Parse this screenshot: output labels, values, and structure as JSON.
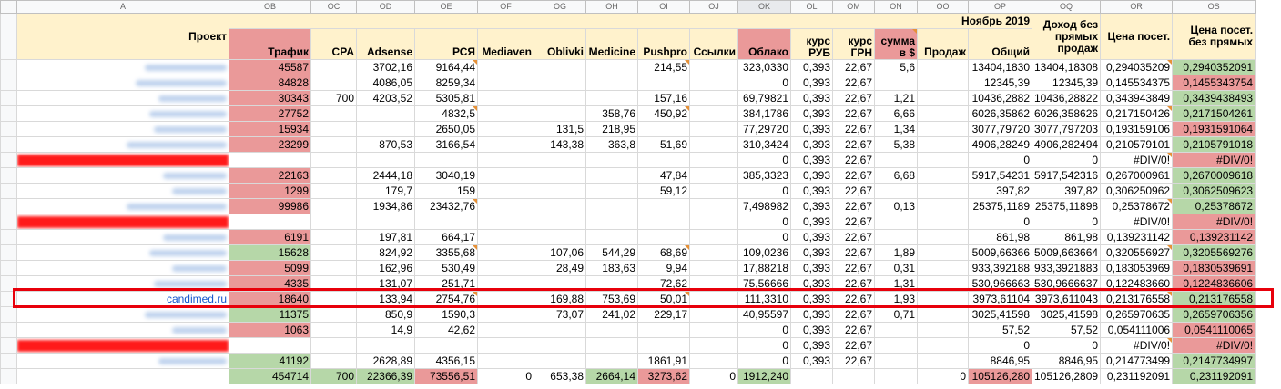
{
  "columns": [
    "A",
    "OB",
    "OC",
    "OD",
    "OE",
    "OF",
    "OG",
    "OH",
    "OI",
    "OJ",
    "OK",
    "OL",
    "OM",
    "ON",
    "OO",
    "OP",
    "OQ",
    "OR",
    "OS"
  ],
  "month": "Ноябрь 2019",
  "headers": {
    "project": "Проект",
    "traffic": "Трафик",
    "cpa": "CPA",
    "adsense": "Adsense",
    "rsya": "РСЯ",
    "mediaven": "Mediaven",
    "oblivki": "Oblivki",
    "medicine": "Medicine",
    "pushpro": "Pushpro",
    "links": "Ссылки",
    "cloud": "Облако",
    "rub": "курс РУБ",
    "uah": "курс ГРН",
    "sum_usd": "сумма в $",
    "sales": "Продаж",
    "total": "Общий",
    "income": "Доход без прямых продаж",
    "price": "Цена посет.",
    "price_np": "Цена посет. без прямых"
  },
  "highlight_project": "candimed.ru",
  "rows": [
    {
      "p": "",
      "t": "45587",
      "c": "",
      "a": "3702,16",
      "r": "9164,44",
      "m": "",
      "o": "",
      "md": "",
      "pu": "214,55",
      "l": "",
      "cl": "323,0330",
      "rub": "0,393",
      "uah": "22,67",
      "usd": "5,6",
      "s": "",
      "tot": "13404,1830",
      "inc": "13404,18308",
      "pr": "0,294035209",
      "pn": "0,2940352091"
    },
    {
      "p": "",
      "t": "84828",
      "c": "",
      "a": "4086,05",
      "r": "8259,34",
      "m": "",
      "o": "",
      "md": "",
      "pu": "",
      "l": "",
      "cl": "0",
      "rub": "0,393",
      "uah": "22,67",
      "usd": "",
      "s": "",
      "tot": "12345,39",
      "inc": "12345,39",
      "pr": "0,145534375",
      "pn": "0,1455343754"
    },
    {
      "p": "",
      "t": "30343",
      "c": "700",
      "a": "4203,52",
      "r": "5305,81",
      "m": "",
      "o": "",
      "md": "",
      "pu": "157,16",
      "l": "",
      "cl": "69,79821",
      "rub": "0,393",
      "uah": "22,67",
      "usd": "1,21",
      "s": "",
      "tot": "10436,2882",
      "inc": "10436,28822",
      "pr": "0,343943849",
      "pn": "0,3439438493"
    },
    {
      "p": "",
      "t": "27752",
      "c": "",
      "a": "",
      "r": "4832,5",
      "m": "",
      "o": "",
      "md": "358,76",
      "pu": "450,92",
      "l": "",
      "cl": "384,1786",
      "rub": "0,393",
      "uah": "22,67",
      "usd": "6,66",
      "s": "",
      "tot": "6026,35862",
      "inc": "6026,358626",
      "pr": "0,217150426",
      "pn": "0,2171504261"
    },
    {
      "p": "",
      "t": "15934",
      "c": "",
      "a": "",
      "r": "2650,05",
      "m": "",
      "o": "131,5",
      "md": "218,95",
      "pu": "",
      "l": "",
      "cl": "77,29720",
      "rub": "0,393",
      "uah": "22,67",
      "usd": "1,34",
      "s": "",
      "tot": "3077,79720",
      "inc": "3077,797203",
      "pr": "0,193159106",
      "pn": "0,1931591064"
    },
    {
      "p": "",
      "t": "23299",
      "c": "",
      "a": "870,53",
      "r": "3166,54",
      "m": "",
      "o": "143,38",
      "md": "363,8",
      "pu": "51,69",
      "l": "",
      "cl": "310,3424",
      "rub": "0,393",
      "uah": "22,67",
      "usd": "5,38",
      "s": "",
      "tot": "4906,28249",
      "inc": "4906,282494",
      "pr": "0,210579101",
      "pn": "0,2105791018"
    },
    {
      "p": "",
      "t": "",
      "c": "",
      "a": "",
      "r": "",
      "m": "",
      "o": "",
      "md": "",
      "pu": "",
      "l": "",
      "cl": "0",
      "rub": "0,393",
      "uah": "22,67",
      "usd": "",
      "s": "",
      "tot": "0",
      "inc": "0",
      "pr": "#DIV/0!",
      "pn": "#DIV/0!"
    },
    {
      "p": "",
      "t": "22163",
      "c": "",
      "a": "2444,18",
      "r": "3040,19",
      "m": "",
      "o": "",
      "md": "",
      "pu": "47,84",
      "l": "",
      "cl": "385,3323",
      "rub": "0,393",
      "uah": "22,67",
      "usd": "6,68",
      "s": "",
      "tot": "5917,54231",
      "inc": "5917,542316",
      "pr": "0,267000961",
      "pn": "0,2670009618"
    },
    {
      "p": "",
      "t": "1299",
      "c": "",
      "a": "179,7",
      "r": "159",
      "m": "",
      "o": "",
      "md": "",
      "pu": "59,12",
      "l": "",
      "cl": "0",
      "rub": "0,393",
      "uah": "22,67",
      "usd": "",
      "s": "",
      "tot": "397,82",
      "inc": "397,82",
      "pr": "0,306250962",
      "pn": "0,3062509623"
    },
    {
      "p": "",
      "t": "99986",
      "c": "",
      "a": "1934,86",
      "r": "23432,76",
      "m": "",
      "o": "",
      "md": "",
      "pu": "",
      "l": "",
      "cl": "7,498982",
      "rub": "0,393",
      "uah": "22,67",
      "usd": "0,13",
      "s": "",
      "tot": "25375,1189",
      "inc": "25375,11898",
      "pr": "0,25378672",
      "pn": "0,25378672"
    },
    {
      "p": "",
      "t": "",
      "c": "",
      "a": "",
      "r": "",
      "m": "",
      "o": "",
      "md": "",
      "pu": "",
      "l": "",
      "cl": "0",
      "rub": "0,393",
      "uah": "22,67",
      "usd": "",
      "s": "",
      "tot": "0",
      "inc": "0",
      "pr": "#DIV/0!",
      "pn": "#DIV/0!"
    },
    {
      "p": "",
      "t": "6191",
      "c": "",
      "a": "197,81",
      "r": "664,17",
      "m": "",
      "o": "",
      "md": "",
      "pu": "",
      "l": "",
      "cl": "0",
      "rub": "0,393",
      "uah": "22,67",
      "usd": "",
      "s": "",
      "tot": "861,98",
      "inc": "861,98",
      "pr": "0,139231142",
      "pn": "0,139231142"
    },
    {
      "p": "",
      "t": "15628",
      "c": "",
      "a": "824,92",
      "r": "3355,68",
      "m": "",
      "o": "107,06",
      "md": "544,29",
      "pu": "68,69",
      "l": "",
      "cl": "109,0236",
      "rub": "0,393",
      "uah": "22,67",
      "usd": "1,89",
      "s": "",
      "tot": "5009,66366",
      "inc": "5009,663664",
      "pr": "0,320556927",
      "pn": "0,3205569276"
    },
    {
      "p": "",
      "t": "5099",
      "c": "",
      "a": "162,96",
      "r": "530,49",
      "m": "",
      "o": "28,49",
      "md": "183,63",
      "pu": "9,94",
      "l": "",
      "cl": "17,88218",
      "rub": "0,393",
      "uah": "22,67",
      "usd": "0,31",
      "s": "",
      "tot": "933,392188",
      "inc": "933,3921883",
      "pr": "0,183053969",
      "pn": "0,1830539691"
    },
    {
      "p": "",
      "t": "4335",
      "c": "",
      "a": "131,07",
      "r": "251,71",
      "m": "",
      "o": "",
      "md": "",
      "pu": "72,62",
      "l": "",
      "cl": "75,56666",
      "rub": "0,393",
      "uah": "22,67",
      "usd": "1,31",
      "s": "",
      "tot": "530,966663",
      "inc": "530,9666637",
      "pr": "0,122483660",
      "pn": "0,1224836606"
    },
    {
      "p": "candimed.ru",
      "t": "18640",
      "c": "",
      "a": "133,94",
      "r": "2754,76",
      "m": "",
      "o": "169,88",
      "md": "753,69",
      "pu": "50,01",
      "l": "",
      "cl": "111,3310",
      "rub": "0,393",
      "uah": "22,67",
      "usd": "1,93",
      "s": "",
      "tot": "3973,61104",
      "inc": "3973,611043",
      "pr": "0,213176558",
      "pn": "0,213176558"
    },
    {
      "p": "",
      "t": "11375",
      "c": "",
      "a": "850,9",
      "r": "1590,3",
      "m": "",
      "o": "73,07",
      "md": "241,02",
      "pu": "229,17",
      "l": "",
      "cl": "40,95597",
      "rub": "0,393",
      "uah": "22,67",
      "usd": "0,71",
      "s": "",
      "tot": "3025,41598",
      "inc": "3025,41598",
      "pr": "0,265970635",
      "pn": "0,2659706356"
    },
    {
      "p": "",
      "t": "1063",
      "c": "",
      "a": "14,9",
      "r": "42,62",
      "m": "",
      "o": "",
      "md": "",
      "pu": "",
      "l": "",
      "cl": "0",
      "rub": "0,393",
      "uah": "22,67",
      "usd": "",
      "s": "",
      "tot": "57,52",
      "inc": "57,52",
      "pr": "0,054111006",
      "pn": "0,0541110065"
    },
    {
      "p": "",
      "t": "",
      "c": "",
      "a": "",
      "r": "",
      "m": "",
      "o": "",
      "md": "",
      "pu": "",
      "l": "",
      "cl": "0",
      "rub": "0,393",
      "uah": "22,67",
      "usd": "",
      "s": "",
      "tot": "0",
      "inc": "0",
      "pr": "#DIV/0!",
      "pn": "#DIV/0!"
    },
    {
      "p": "",
      "t": "41192",
      "c": "",
      "a": "2628,89",
      "r": "4356,15",
      "m": "",
      "o": "",
      "md": "",
      "pu": "1861,91",
      "l": "",
      "cl": "0",
      "rub": "0,393",
      "uah": "22,67",
      "usd": "",
      "s": "",
      "tot": "8846,95",
      "inc": "8846,95",
      "pr": "0,214773499",
      "pn": "0,2147734997"
    },
    {
      "p": "",
      "t": "454714",
      "c": "700",
      "a": "22366,39",
      "r": "73556,51",
      "m": "0",
      "o": "653,38",
      "md": "2664,14",
      "pu": "3273,62",
      "l": "0",
      "cl": "1912,240",
      "rub": "",
      "uah": "",
      "usd": "",
      "s": "0",
      "tot": "105126,280",
      "inc": "105126,2809",
      "pr": "0,231192091",
      "pn": "0,231192091"
    }
  ]
}
